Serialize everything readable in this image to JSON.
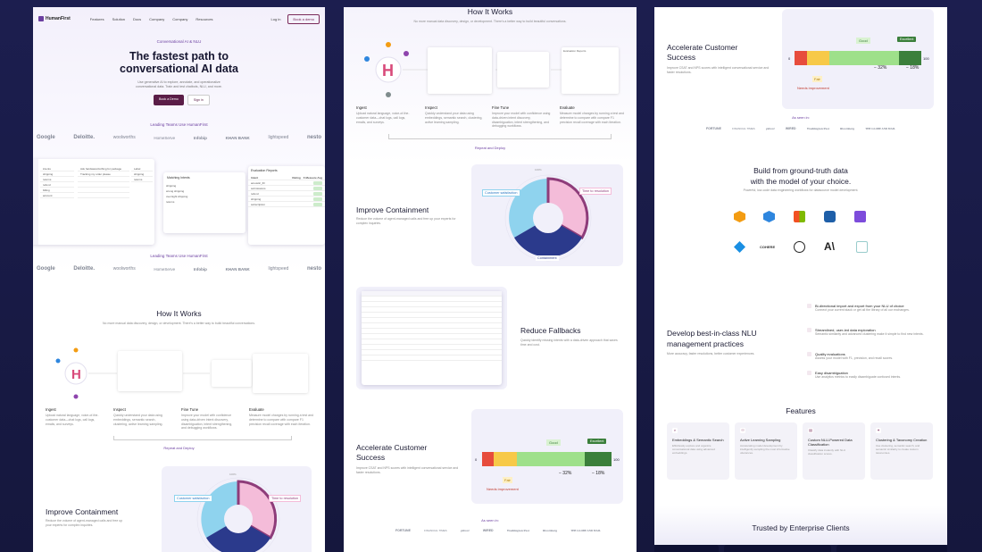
{
  "nav": {
    "brand": "HumanFirst",
    "links": [
      "Features",
      "Solution",
      "Docs",
      "Company",
      "Company",
      "Resources"
    ],
    "login": "Log in",
    "cta": "Book a demo"
  },
  "hero": {
    "eyebrow": "Conversational AI & NLU",
    "title_line1": "The fastest path to",
    "title_line2": "conversational AI data",
    "subtitle_line1": "Use generative AI to explore, annotate, and operationalize",
    "subtitle_line2": "conversational data. Train and test chatbots, NLU, and more.",
    "primary": "Book a Demo",
    "secondary": "Sign in"
  },
  "leading": {
    "title": "Leading Teams Use HumanFirst",
    "logos": [
      "Google",
      "Deloitte.",
      "woolworths",
      "HomeServe",
      "Infobip",
      "KHAN BANK",
      "lightspeed",
      "nesto"
    ]
  },
  "how": {
    "title": "How It Works",
    "subtitle": "No more manual data discovery, design, or development. There's a better way to build beautiful conversations.",
    "steps": [
      {
        "name": "Ingest",
        "desc": "Upload natural language, voice-of-the-customer data—chat logs, call logs, emails, and surveys."
      },
      {
        "name": "Inspect",
        "desc": "Quickly understand your data using embeddings, semantic search, clustering, active learning sampling."
      },
      {
        "name": "Fine Tune",
        "desc": "Improve your model with confidence using data-driven intent discovery, disambiguation, intent strengthening, and debugging workflows."
      },
      {
        "name": "Evaluate",
        "desc": "Measure model changes by running a test and determine to compare with compare F1 precision recall coverage with each iteration."
      }
    ],
    "repeat": "Repeat and Deploy",
    "matching": "Matching Intents",
    "eval_title": "Evaluation Reports",
    "eval_cols": [
      "Intent",
      "Rating",
      "F-Measure Avg"
    ],
    "eval_rows": [
      "acoustic_ID",
      "submissions",
      "refund",
      "shipping",
      "subscription"
    ],
    "intent_header": "Label",
    "mini_intents": [
      "shipping",
      "wrong shipping",
      "overnight shipping",
      "returns"
    ],
    "mini_utter": [
      "Ask hardware/clothing for package",
      "Tracking my order please"
    ]
  },
  "contain": {
    "title": "Improve Containment",
    "desc": "Reduce the volume of agent-managed calls and free up your experts for complex inquiries.",
    "labels": [
      "Customer satisfaction",
      "Time to resolution",
      "Containment"
    ],
    "pct": "100%"
  },
  "fallback": {
    "title": "Reduce Fallbacks",
    "desc": "Quickly identify missing intents with a data-driven approach that saves time and cost."
  },
  "csat": {
    "title_line1": "Accelerate Customer",
    "title_line2": "Success",
    "desc": "Improve CSAT and NPS scores with intelligent conversational service and faster resolutions.",
    "good": "Good",
    "excellent": "Excellent",
    "fair": "Fair",
    "needs": "Needs improvement",
    "zero": "0",
    "hundred": "100",
    "minus": "− 32%",
    "plus": "− 18%",
    "as_seen": "As seen in:",
    "press": [
      "FORTUNE",
      "FINANCIAL TIMES",
      "yahoo!",
      "WIRED",
      "Washington Post",
      "Bloomberg",
      "THE GLOBE AND MAIL"
    ]
  },
  "ground": {
    "title_line1": "Build from ground-truth data",
    "title_line2": "with the model of your choice.",
    "subtitle": "Powerful, low-code data engineering workflows for datasource model development.",
    "cohere": "COHERE"
  },
  "nlu": {
    "title_line1": "Develop best-in-class NLU",
    "title_line2": "management practices",
    "desc": "More accuracy, faster resolutions, better customer experiences.",
    "bullets": [
      {
        "title": "Bi-directional import and export from your NLU of choice",
        "desc": "Connect your current stack or get all the library of all our exchanges."
      },
      {
        "title": "Streamlined, user-led data exploration",
        "desc": "Semantic similarity and advanced clustering make it simple to find new intents."
      },
      {
        "title": "Quality evaluations",
        "desc": "Assess your model with F1, precision, and recall scores."
      },
      {
        "title": "Easy disambiguation",
        "desc": "Use analytics metrics to easily disambiguate confused intents."
      }
    ]
  },
  "features": {
    "title": "Features",
    "cards": [
      {
        "title": "Embeddings & Semantic Search",
        "desc": "Effortlessly explore and organize conversational data using advanced embeddings."
      },
      {
        "title": "Active Learning Sampling",
        "desc": "Accelerating model development by intelligently sampling the most informative utterances."
      },
      {
        "title": "Custom NLU-Powered Data Classification",
        "desc": "Classify data instantly with NLU classification scores."
      },
      {
        "title": "Clustering & Taxonomy Creation",
        "desc": "Use clustering, semantic search, and semantic similarity to create custom taxonomies."
      }
    ]
  },
  "trusted": {
    "title": "Trusted by Enterprise Clients"
  }
}
